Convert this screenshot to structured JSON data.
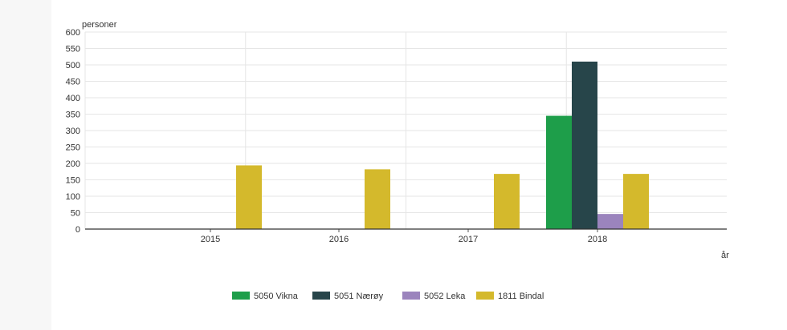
{
  "chart_data": {
    "type": "bar",
    "categories": [
      "2015",
      "2016",
      "2017",
      "2018"
    ],
    "series": [
      {
        "name": "5050 Vikna",
        "color": "#1e9e4a",
        "values": [
          null,
          null,
          null,
          345
        ]
      },
      {
        "name": "5051 Nærøy",
        "color": "#27454a",
        "values": [
          null,
          null,
          null,
          510
        ]
      },
      {
        "name": "5052 Leka",
        "color": "#9b84bd",
        "values": [
          null,
          null,
          null,
          46
        ]
      },
      {
        "name": "1811 Bindal",
        "color": "#d4b92c",
        "values": [
          194,
          182,
          168,
          168
        ]
      }
    ],
    "ylabel": "personer",
    "xlabel": "år",
    "ylim": [
      0,
      600
    ],
    "yticks": [
      0,
      50,
      100,
      150,
      200,
      250,
      300,
      350,
      400,
      450,
      500,
      550,
      600
    ],
    "grid": true,
    "legend_position": "bottom"
  }
}
